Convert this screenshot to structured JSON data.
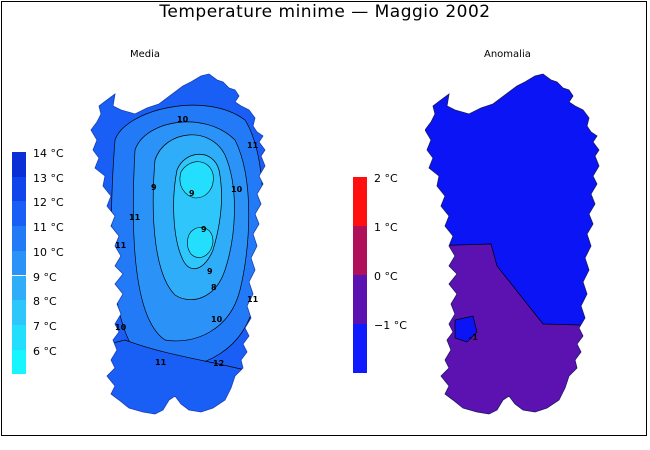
{
  "title": "Temperature minime — Maggio 2002",
  "panels": [
    {
      "label": "Media"
    },
    {
      "label": "Anomalia"
    }
  ],
  "legend_left": {
    "items": [
      {
        "label": "14 °C",
        "color": "#0a2fd6"
      },
      {
        "label": "13 °C",
        "color": "#0f45ea"
      },
      {
        "label": "12 °C",
        "color": "#1a5ff5"
      },
      {
        "label": "11 °C",
        "color": "#237af7"
      },
      {
        "label": "10 °C",
        "color": "#2b93f8"
      },
      {
        "label": "9 °C",
        "color": "#2fadf9"
      },
      {
        "label": "8 °C",
        "color": "#2fc6fb"
      },
      {
        "label": "7 °C",
        "color": "#23defd"
      },
      {
        "label": "6 °C",
        "color": "#17f5ff"
      }
    ]
  },
  "legend_right": {
    "items": [
      {
        "label": "2 °C",
        "color": "#ff0f0f"
      },
      {
        "label": "1 °C",
        "color": "#b0105a"
      },
      {
        "label": "0 °C",
        "color": "#5c12b0"
      },
      {
        "label": "−1 °C",
        "color": "#0f1aff"
      }
    ]
  },
  "contour_labels": [
    "10",
    "11",
    "9",
    "9",
    "10",
    "11",
    "9",
    "9",
    "8",
    "10",
    "11",
    "11",
    "10",
    "12",
    "11"
  ],
  "anomaly_contour_label": "-1",
  "colors": {
    "map_fill_base": "#1a5ff5",
    "anomaly_blue": "#0a14f5",
    "anomaly_purple": "#5c12b0"
  }
}
